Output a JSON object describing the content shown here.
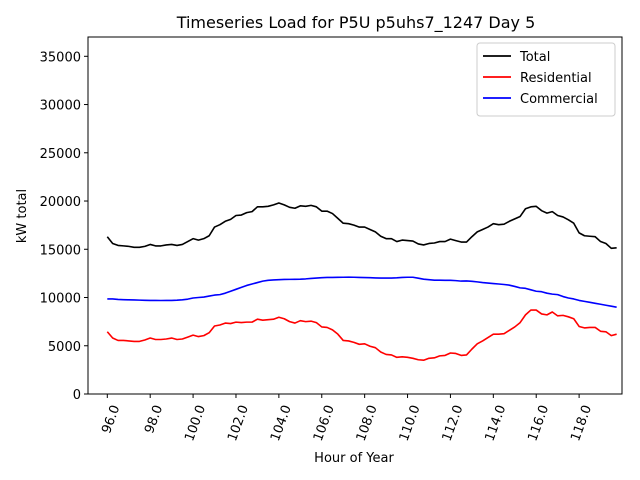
{
  "chart_data": {
    "type": "line",
    "title": "Timeseries Load for P5U p5uhs7_1247  Day 5",
    "xlabel": "Hour of Year",
    "ylabel": "kW total",
    "xlim": [
      95.1,
      120.0
    ],
    "ylim": [
      0,
      37000
    ],
    "xticks": [
      96,
      98,
      100,
      102,
      104,
      106,
      108,
      110,
      112,
      114,
      116,
      118
    ],
    "xtick_labels": [
      "96.0",
      "98.0",
      "100.0",
      "102.0",
      "104.0",
      "106.0",
      "108.0",
      "110.0",
      "112.0",
      "114.0",
      "116.0",
      "118.0"
    ],
    "yticks": [
      0,
      5000,
      10000,
      15000,
      20000,
      25000,
      30000,
      35000
    ],
    "ytick_labels": [
      "0",
      "5000",
      "10000",
      "15000",
      "20000",
      "25000",
      "30000",
      "35000"
    ],
    "legend_position": "top-right",
    "x": [
      96.0,
      96.25,
      96.5,
      96.75,
      97.0,
      97.25,
      97.5,
      97.75,
      98.0,
      98.25,
      98.5,
      98.75,
      99.0,
      99.25,
      99.5,
      99.75,
      100.0,
      100.25,
      100.5,
      100.75,
      101.0,
      101.25,
      101.5,
      101.75,
      102.0,
      102.25,
      102.5,
      102.75,
      103.0,
      103.25,
      103.5,
      103.75,
      104.0,
      104.25,
      104.5,
      104.75,
      105.0,
      105.25,
      105.5,
      105.75,
      106.0,
      106.25,
      106.5,
      106.75,
      107.0,
      107.25,
      107.5,
      107.75,
      108.0,
      108.25,
      108.5,
      108.75,
      109.0,
      109.25,
      109.5,
      109.75,
      110.0,
      110.25,
      110.5,
      110.75,
      111.0,
      111.25,
      111.5,
      111.75,
      112.0,
      112.25,
      112.5,
      112.75,
      113.0,
      113.25,
      113.5,
      113.75,
      114.0,
      114.25,
      114.5,
      114.75,
      115.0,
      115.25,
      115.5,
      115.75,
      116.0,
      116.25,
      116.5,
      116.75,
      117.0,
      117.25,
      117.5,
      117.75,
      118.0,
      118.25,
      118.5,
      118.75,
      119.0,
      119.25,
      119.5,
      119.75
    ],
    "series": [
      {
        "name": "Total",
        "color": "#000000",
        "values": [
          16300,
          15600,
          15400,
          15350,
          15300,
          15200,
          15200,
          15300,
          15500,
          15350,
          15350,
          15450,
          15500,
          15400,
          15500,
          15800,
          16100,
          15950,
          16100,
          16400,
          17300,
          17550,
          17900,
          18100,
          18500,
          18550,
          18800,
          18900,
          19400,
          19400,
          19450,
          19600,
          19800,
          19600,
          19350,
          19250,
          19500,
          19450,
          19550,
          19400,
          18950,
          18950,
          18700,
          18200,
          17700,
          17650,
          17500,
          17300,
          17300,
          17050,
          16800,
          16350,
          16100,
          16100,
          15800,
          15950,
          15900,
          15850,
          15550,
          15450,
          15600,
          15650,
          15800,
          15800,
          16050,
          15900,
          15750,
          15750,
          16300,
          16800,
          17050,
          17300,
          17650,
          17550,
          17600,
          17900,
          18150,
          18400,
          19200,
          19400,
          19450,
          19000,
          18750,
          18900,
          18500,
          18350,
          18050,
          17700,
          16700,
          16400,
          16350,
          16300,
          15800,
          15600,
          15100,
          15150
        ]
      },
      {
        "name": "Residential",
        "color": "#ff0000",
        "values": [
          6450,
          5800,
          5550,
          5550,
          5500,
          5450,
          5450,
          5600,
          5800,
          5650,
          5650,
          5700,
          5800,
          5650,
          5700,
          5900,
          6100,
          5950,
          6050,
          6350,
          7050,
          7150,
          7350,
          7300,
          7450,
          7400,
          7450,
          7450,
          7750,
          7650,
          7700,
          7750,
          7950,
          7800,
          7500,
          7350,
          7600,
          7500,
          7550,
          7400,
          6950,
          6900,
          6650,
          6200,
          5550,
          5500,
          5350,
          5150,
          5200,
          4950,
          4800,
          4350,
          4100,
          4050,
          3800,
          3850,
          3800,
          3700,
          3550,
          3500,
          3700,
          3750,
          3950,
          4000,
          4250,
          4200,
          4000,
          4050,
          4650,
          5200,
          5500,
          5850,
          6200,
          6200,
          6250,
          6600,
          6950,
          7400,
          8200,
          8700,
          8700,
          8300,
          8200,
          8500,
          8100,
          8150,
          8000,
          7800,
          7000,
          6850,
          6900,
          6900,
          6500,
          6450,
          6050,
          6200
        ]
      },
      {
        "name": "Commercial",
        "color": "#0000ff",
        "values": [
          9850,
          9850,
          9800,
          9780,
          9760,
          9750,
          9730,
          9710,
          9700,
          9700,
          9690,
          9700,
          9700,
          9720,
          9760,
          9830,
          9950,
          10000,
          10050,
          10150,
          10250,
          10300,
          10450,
          10650,
          10850,
          11050,
          11250,
          11400,
          11550,
          11700,
          11780,
          11820,
          11850,
          11870,
          11880,
          11890,
          11900,
          11930,
          11980,
          12020,
          12060,
          12080,
          12080,
          12090,
          12100,
          12110,
          12100,
          12080,
          12070,
          12050,
          12030,
          12020,
          12020,
          12020,
          12040,
          12080,
          12100,
          12100,
          12000,
          11900,
          11850,
          11800,
          11800,
          11780,
          11780,
          11750,
          11700,
          11720,
          11680,
          11620,
          11550,
          11500,
          11450,
          11400,
          11350,
          11280,
          11150,
          11000,
          10950,
          10800,
          10650,
          10600,
          10450,
          10350,
          10300,
          10100,
          9950,
          9850,
          9700,
          9600,
          9500,
          9400,
          9300,
          9200,
          9100,
          9000
        ]
      }
    ]
  }
}
